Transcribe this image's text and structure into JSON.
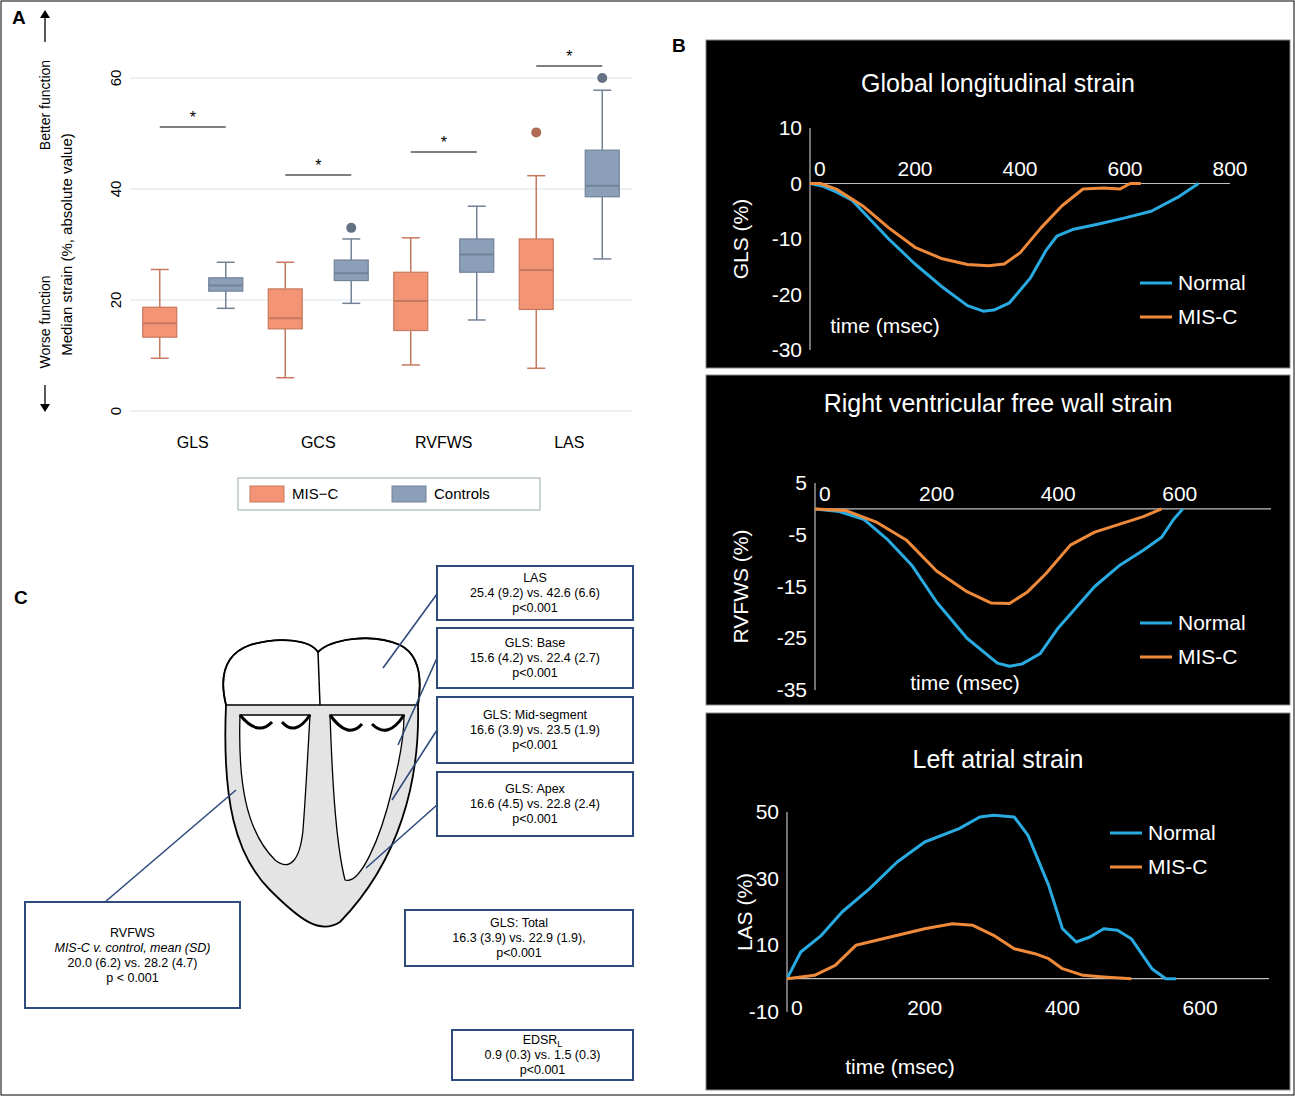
{
  "panel_labels": [
    "A",
    "B",
    "C"
  ],
  "chart_data": [
    {
      "type": "box",
      "categories": [
        "GLS",
        "GCS",
        "RVFWS",
        "LAS"
      ],
      "y_label": "Median strain (%, absolute value)",
      "annotations": [
        "Better function",
        "Worse function"
      ],
      "significance": [
        "*",
        "*",
        "*",
        "*"
      ],
      "ylim": [
        0,
        60
      ],
      "yticks": [
        0,
        20,
        40,
        60
      ],
      "grid": true,
      "legend": "bottom",
      "series": [
        {
          "name": "MIS−C",
          "color": "#f39474",
          "whisker_low": [
            9.5,
            6,
            8.3,
            7.7
          ],
          "q1": [
            13.3,
            14.8,
            14.5,
            18.3
          ],
          "median": [
            15.8,
            16.7,
            19.8,
            25.4
          ],
          "q3": [
            18.7,
            22,
            25,
            31
          ],
          "whisker_high": [
            25.5,
            26.8,
            31.2,
            42.4
          ],
          "outliers": [
            [],
            [],
            [],
            [
              50.2
            ]
          ]
        },
        {
          "name": "Controls",
          "color": "#8b9fb8",
          "whisker_low": [
            18.5,
            19.4,
            16.4,
            27.4
          ],
          "q1": [
            21.6,
            23.5,
            25,
            38.6
          ],
          "median": [
            22.6,
            24.8,
            28.2,
            40.6
          ],
          "q3": [
            24,
            27.2,
            31,
            47
          ],
          "whisker_high": [
            26.8,
            31,
            36.9,
            57.8
          ],
          "outliers": [
            [],
            [
              33
            ],
            [],
            [
              60
            ]
          ]
        }
      ]
    },
    {
      "type": "line",
      "title": "Global longitudinal strain",
      "y_label": "GLS (%)",
      "x_label": "time (msec)",
      "xlim": [
        0,
        800
      ],
      "ylim": [
        -30,
        10
      ],
      "xticks": [
        0,
        200,
        400,
        600,
        800
      ],
      "yticks": [
        -30,
        -20,
        -10,
        0,
        10
      ],
      "legend": "bottom right",
      "series": [
        {
          "name": "Normal",
          "color": "#29abe2",
          "x": [
            0,
            25,
            50,
            80,
            100,
            150,
            200,
            250,
            300,
            330,
            350,
            380,
            420,
            450,
            470,
            500,
            550,
            600,
            650,
            700,
            740
          ],
          "values": [
            0,
            -0.5,
            -1.5,
            -3,
            -5,
            -10,
            -14.5,
            -18.5,
            -22,
            -23,
            -22.8,
            -21.5,
            -17,
            -12,
            -9.5,
            -8.3,
            -7.3,
            -6.2,
            -5,
            -2.5,
            0
          ]
        },
        {
          "name": "MIS-C",
          "color": "#ef8a3a",
          "x": [
            0,
            20,
            50,
            100,
            150,
            200,
            250,
            300,
            340,
            370,
            400,
            440,
            480,
            520,
            560,
            590,
            610,
            630
          ],
          "values": [
            0,
            0,
            -1,
            -4,
            -8,
            -11.5,
            -13.5,
            -14.6,
            -14.8,
            -14.5,
            -12.5,
            -8,
            -4,
            -1,
            -0.8,
            -1,
            0,
            0
          ]
        }
      ]
    },
    {
      "type": "line",
      "title": "Right ventricular free wall strain",
      "y_label": "RVFWS (%)",
      "x_label": "time (msec)",
      "xlim": [
        0,
        750
      ],
      "ylim": [
        -35,
        5
      ],
      "xticks": [
        0,
        200,
        400,
        600
      ],
      "yticks": [
        -35,
        -25,
        -15,
        -5,
        5
      ],
      "legend": "bottom right",
      "series": [
        {
          "name": "Normal",
          "color": "#29abe2",
          "x": [
            0,
            40,
            80,
            120,
            160,
            200,
            250,
            300,
            320,
            340,
            370,
            400,
            430,
            460,
            500,
            540,
            570,
            590,
            605
          ],
          "values": [
            0,
            -0.5,
            -2,
            -6,
            -11,
            -18,
            -25,
            -29.8,
            -30.4,
            -30,
            -28,
            -23,
            -19,
            -15,
            -11,
            -8,
            -5.5,
            -2,
            0
          ]
        },
        {
          "name": "MIS-C",
          "color": "#ef8a3a",
          "x": [
            0,
            50,
            100,
            150,
            200,
            250,
            290,
            320,
            350,
            380,
            420,
            460,
            500,
            540,
            570
          ],
          "values": [
            0,
            -0.3,
            -2.5,
            -6,
            -12,
            -16,
            -18.2,
            -18.3,
            -16,
            -12.5,
            -7,
            -4.5,
            -3,
            -1.5,
            0
          ]
        }
      ]
    },
    {
      "type": "line",
      "title": "Left atrial strain",
      "y_label": "LAS (%)",
      "x_label": "time (msec)",
      "xlim": [
        0,
        700
      ],
      "ylim": [
        -10,
        50
      ],
      "xticks": [
        0,
        200,
        400,
        600
      ],
      "yticks": [
        -10,
        10,
        30,
        50
      ],
      "legend": "top right",
      "series": [
        {
          "name": "Normal",
          "color": "#29abe2",
          "x": [
            0,
            20,
            50,
            80,
            120,
            160,
            200,
            250,
            280,
            300,
            330,
            350,
            380,
            400,
            420,
            440,
            460,
            480,
            500,
            530,
            550,
            565
          ],
          "values": [
            0,
            8,
            13,
            20,
            27,
            35,
            41,
            45,
            48.5,
            49,
            48.5,
            43,
            28,
            15,
            11,
            12.5,
            15,
            14.5,
            12,
            3,
            0,
            0
          ]
        },
        {
          "name": "MIS-C",
          "color": "#ef8a3a",
          "x": [
            0,
            40,
            70,
            100,
            150,
            200,
            240,
            270,
            300,
            330,
            360,
            380,
            400,
            430,
            460,
            500
          ],
          "values": [
            0,
            1,
            4,
            10,
            12.5,
            15,
            16.5,
            16,
            13,
            9,
            7.5,
            6,
            3,
            1,
            0.5,
            0
          ]
        }
      ]
    }
  ],
  "diagram": {
    "boxes": [
      {
        "title": "LAS",
        "lines": [
          "25.4 (9.2) vs. 42.6 (6.6)",
          "p<0.001"
        ]
      },
      {
        "title": "GLS: Base",
        "lines": [
          "15.6 (4.2) vs. 22.4 (2.7)",
          "p<0.001"
        ]
      },
      {
        "title": "GLS: Mid-segment",
        "lines": [
          "16.6 (3.9) vs. 23.5 (1.9)",
          "p<0.001"
        ]
      },
      {
        "title": "GLS: Apex",
        "lines": [
          "16.6 (4.5) vs. 22.8 (2.4)",
          "p<0.001"
        ]
      },
      {
        "title": "GLS: Total",
        "lines": [
          "16.3 (3.9) vs. 22.9 (1.9),",
          "p<0.001"
        ]
      },
      {
        "title": "EDSR",
        "subscript": "L",
        "lines": [
          "0.9 (0.3) vs. 1.5 (0.3)",
          "p<0.001"
        ]
      },
      {
        "title": "RVFWS",
        "subtitle": "MIS-C v. control, mean (SD)",
        "lines": [
          "20.0 (6.2) vs. 28.2 (4.7)",
          "p < 0.001"
        ]
      }
    ]
  }
}
